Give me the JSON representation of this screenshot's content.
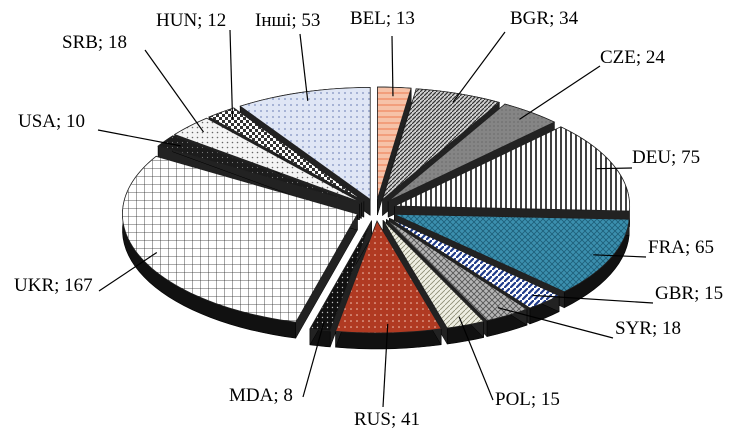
{
  "chart_data": {
    "type": "pie",
    "style": "exploded 3D pie",
    "title": "",
    "legend": "none",
    "slices": [
      {
        "label": "BEL",
        "value": 13,
        "text": "BEL; 13",
        "color": "#ee7b4f",
        "pattern": "peach"
      },
      {
        "label": "BGR",
        "value": 34,
        "text": "BGR; 34",
        "color": "#8a8a8a",
        "pattern": "dense-diagonal"
      },
      {
        "label": "CZE",
        "value": 24,
        "text": "CZE; 24",
        "color": "#7d7d7d",
        "pattern": "solid-gray"
      },
      {
        "label": "DEU",
        "value": 75,
        "text": "DEU; 75",
        "color": "#1a1a1a",
        "pattern": "vertical-lines"
      },
      {
        "label": "FRA",
        "value": 65,
        "text": "FRA; 65",
        "color": "#3b8fae",
        "pattern": "teal-crosshatch"
      },
      {
        "label": "GBR",
        "value": 15,
        "text": "GBR; 15",
        "color": "#1e3a8a",
        "pattern": "navy-stripes"
      },
      {
        "label": "SYR",
        "value": 18,
        "text": "SYR; 18",
        "color": "#9c9c9c",
        "pattern": "weave"
      },
      {
        "label": "POL",
        "value": 15,
        "text": "POL; 15",
        "color": "#d9d9c8",
        "pattern": "light-diagonal"
      },
      {
        "label": "RUS",
        "value": 41,
        "text": "RUS; 41",
        "color": "#b03a22",
        "pattern": "red-dots"
      },
      {
        "label": "MDA",
        "value": 8,
        "text": "MDA; 8",
        "color": "#111111",
        "pattern": "black-dots"
      },
      {
        "label": "UKR",
        "value": 167,
        "text": "UKR; 167",
        "color": "#ffffff",
        "pattern": "grid"
      },
      {
        "label": "USA",
        "value": 10,
        "text": "USA; 10",
        "color": "#1c1c1c",
        "pattern": "dark"
      },
      {
        "label": "SRB",
        "value": 18,
        "text": "SRB; 18",
        "color": "#e8e8e8",
        "pattern": "light-dots"
      },
      {
        "label": "HUN",
        "value": 12,
        "text": "HUN; 12",
        "color": "#555555",
        "pattern": "checker"
      },
      {
        "label": "Інші",
        "value": 53,
        "text": "Інші; 53",
        "color": "#c9d3ea",
        "pattern": "light-blue-dots"
      }
    ]
  }
}
